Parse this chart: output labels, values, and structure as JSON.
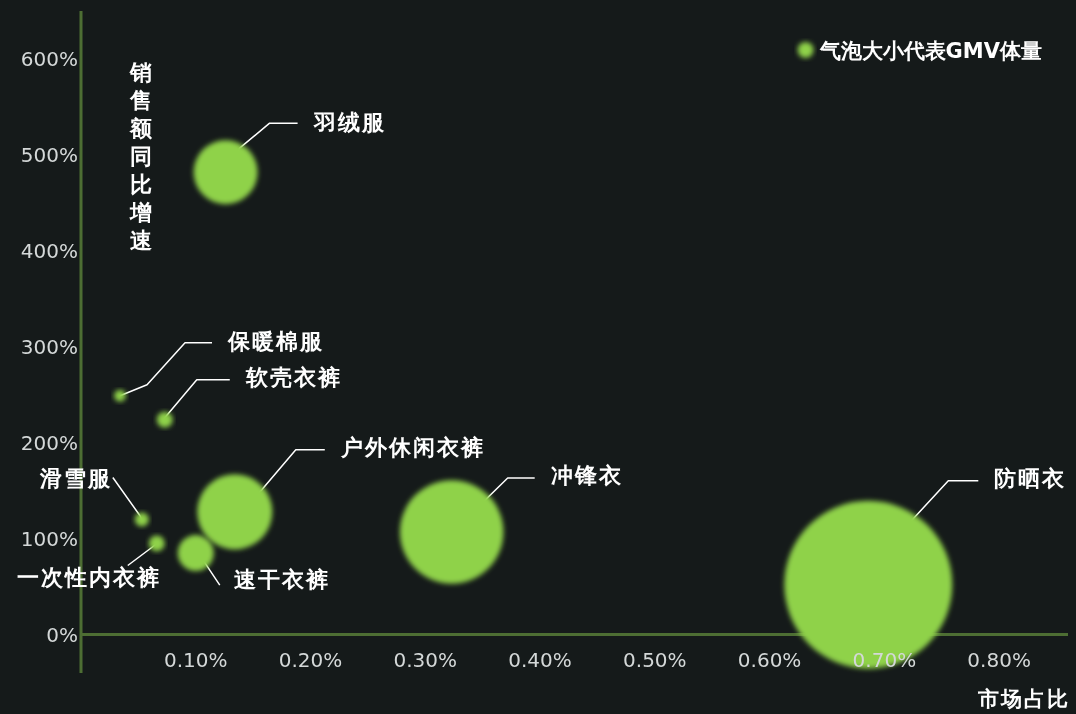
{
  "chart_data": {
    "type": "bubble",
    "ylabel": "销售额同比增速",
    "xlabel": "市场占比",
    "x": [
      0.126,
      0.034,
      0.073,
      0.134,
      0.323,
      0.686,
      0.053,
      0.066,
      0.1
    ],
    "series": [
      {
        "name": "气泡大小代表GMV体量",
        "color": "#8fd24a",
        "values": [
          482,
          249,
          224,
          128,
          107,
          52,
          120,
          95,
          85
        ],
        "sizes": [
          0.145,
          0.005,
          0.009,
          0.2,
          0.38,
          1,
          0.007,
          0.009,
          0.046
        ]
      }
    ],
    "annotations": [
      {
        "text": "羽绒服",
        "x": 0.126,
        "y": 482
      },
      {
        "text": "保暖棉服",
        "x": 0.034,
        "y": 249
      },
      {
        "text": "软壳衣裤",
        "x": 0.073,
        "y": 224
      },
      {
        "text": "户外休闲衣裤",
        "x": 0.134,
        "y": 128
      },
      {
        "text": "冲锋衣",
        "x": 0.323,
        "y": 107
      },
      {
        "text": "防晒衣",
        "x": 0.686,
        "y": 52
      },
      {
        "text": "滑雪服",
        "x": 0.053,
        "y": 120
      },
      {
        "text": "一次性内衣裤",
        "x": 0.066,
        "y": 95
      },
      {
        "text": "速干衣裤",
        "x": 0.1,
        "y": 85
      }
    ],
    "xlim": [
      0,
      0.86
    ],
    "ylim": [
      -40,
      650
    ],
    "xticks": [
      {
        "value": 0.1,
        "label": "0.10%"
      },
      {
        "value": 0.2,
        "label": "0.20%"
      },
      {
        "value": 0.3,
        "label": "0.30%"
      },
      {
        "value": 0.4,
        "label": "0.40%"
      },
      {
        "value": 0.5,
        "label": "0.50%"
      },
      {
        "value": 0.6,
        "label": "0.60%"
      },
      {
        "value": 0.7,
        "label": "0.70%"
      },
      {
        "value": 0.8,
        "label": "0.80%"
      }
    ],
    "yticks": [
      {
        "value": 0,
        "label": "0%"
      },
      {
        "value": 100,
        "label": "100%"
      },
      {
        "value": 200,
        "label": "200%"
      },
      {
        "value": 300,
        "label": "300%"
      },
      {
        "value": 400,
        "label": "400%"
      },
      {
        "value": 500,
        "label": "500%"
      },
      {
        "value": 600,
        "label": "600%"
      }
    ],
    "marker": "circle",
    "legend": "top right"
  }
}
